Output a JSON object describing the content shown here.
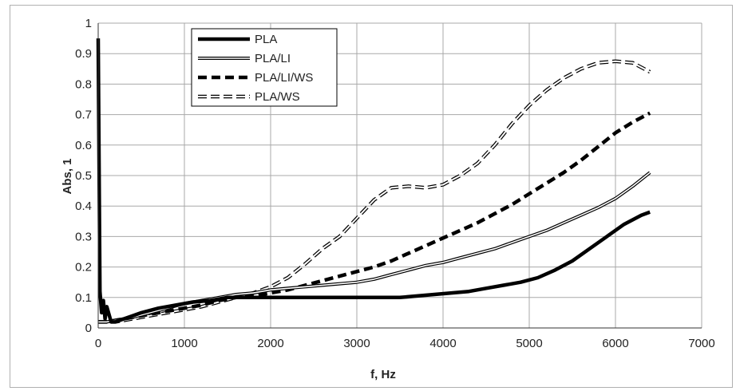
{
  "chart_data": {
    "type": "line",
    "xlabel": "f, Hz",
    "ylabel": "Abs, 1",
    "xlim": [
      0,
      7000
    ],
    "ylim": [
      0,
      1
    ],
    "x_ticks": [
      0,
      1000,
      2000,
      3000,
      4000,
      5000,
      6000,
      7000
    ],
    "y_ticks": [
      0,
      0.1,
      0.2,
      0.3,
      0.4,
      0.5,
      0.6,
      0.7,
      0.8,
      0.9,
      1
    ],
    "y_tick_labels": [
      "0",
      "0.1",
      "0.2",
      "0.3",
      "0.4",
      "0.5",
      "0.6",
      "0.7",
      "0.8",
      "0.9",
      "1"
    ],
    "grid": true,
    "legend_position": "top-left",
    "series": [
      {
        "name": "PLA",
        "style": "solid-thick",
        "color": "#000000",
        "x": [
          0,
          20,
          40,
          60,
          80,
          100,
          150,
          200,
          300,
          400,
          500,
          700,
          900,
          1100,
          1300,
          1500,
          1700,
          1900,
          2100,
          2300,
          2500,
          2700,
          2900,
          3100,
          3300,
          3500,
          3700,
          3900,
          4100,
          4300,
          4500,
          4700,
          4900,
          5100,
          5300,
          5500,
          5700,
          5900,
          6100,
          6300,
          6400
        ],
        "y": [
          0.95,
          0.12,
          0.05,
          0.09,
          0.03,
          0.07,
          0.02,
          0.02,
          0.03,
          0.04,
          0.05,
          0.065,
          0.075,
          0.085,
          0.09,
          0.1,
          0.1,
          0.1,
          0.1,
          0.1,
          0.1,
          0.1,
          0.1,
          0.1,
          0.1,
          0.1,
          0.105,
          0.11,
          0.115,
          0.12,
          0.13,
          0.14,
          0.15,
          0.165,
          0.19,
          0.22,
          0.26,
          0.3,
          0.34,
          0.37,
          0.38
        ]
      },
      {
        "name": "PLA/LI",
        "style": "double-line",
        "color": "#000000",
        "x": [
          0,
          100,
          200,
          400,
          600,
          800,
          1000,
          1200,
          1400,
          1600,
          1800,
          2000,
          2200,
          2400,
          2600,
          2800,
          3000,
          3200,
          3400,
          3600,
          3800,
          4000,
          4200,
          4400,
          4600,
          4800,
          5000,
          5200,
          5400,
          5600,
          5800,
          6000,
          6200,
          6400
        ],
        "y": [
          0.02,
          0.02,
          0.025,
          0.035,
          0.05,
          0.065,
          0.08,
          0.09,
          0.1,
          0.11,
          0.115,
          0.125,
          0.13,
          0.135,
          0.14,
          0.145,
          0.15,
          0.16,
          0.175,
          0.19,
          0.205,
          0.215,
          0.23,
          0.245,
          0.26,
          0.28,
          0.3,
          0.32,
          0.345,
          0.37,
          0.395,
          0.425,
          0.465,
          0.51
        ]
      },
      {
        "name": "PLA/LI/WS",
        "style": "dashed-thick",
        "color": "#000000",
        "x": [
          0,
          100,
          200,
          400,
          600,
          800,
          1000,
          1200,
          1400,
          1600,
          1800,
          2000,
          2200,
          2400,
          2600,
          2800,
          3000,
          3200,
          3400,
          3600,
          3800,
          4000,
          4200,
          4400,
          4600,
          4800,
          5000,
          5200,
          5400,
          5600,
          5800,
          6000,
          6200,
          6400
        ],
        "y": [
          0.02,
          0.02,
          0.025,
          0.035,
          0.045,
          0.055,
          0.065,
          0.075,
          0.09,
          0.1,
          0.105,
          0.115,
          0.125,
          0.14,
          0.155,
          0.17,
          0.185,
          0.2,
          0.22,
          0.245,
          0.27,
          0.295,
          0.32,
          0.345,
          0.375,
          0.405,
          0.44,
          0.475,
          0.51,
          0.55,
          0.595,
          0.64,
          0.675,
          0.705
        ]
      },
      {
        "name": "PLA/WS",
        "style": "dashed-hollow",
        "color": "#000000",
        "x": [
          0,
          100,
          200,
          400,
          600,
          800,
          1000,
          1200,
          1400,
          1600,
          1800,
          2000,
          2200,
          2400,
          2600,
          2800,
          3000,
          3200,
          3400,
          3600,
          3800,
          4000,
          4200,
          4400,
          4600,
          4800,
          5000,
          5200,
          5400,
          5600,
          5800,
          6000,
          6200,
          6400
        ],
        "y": [
          0.02,
          0.02,
          0.02,
          0.03,
          0.04,
          0.05,
          0.06,
          0.07,
          0.085,
          0.1,
          0.115,
          0.135,
          0.165,
          0.21,
          0.26,
          0.3,
          0.36,
          0.42,
          0.46,
          0.465,
          0.46,
          0.47,
          0.5,
          0.54,
          0.6,
          0.67,
          0.73,
          0.78,
          0.82,
          0.85,
          0.87,
          0.875,
          0.87,
          0.84
        ]
      }
    ]
  }
}
